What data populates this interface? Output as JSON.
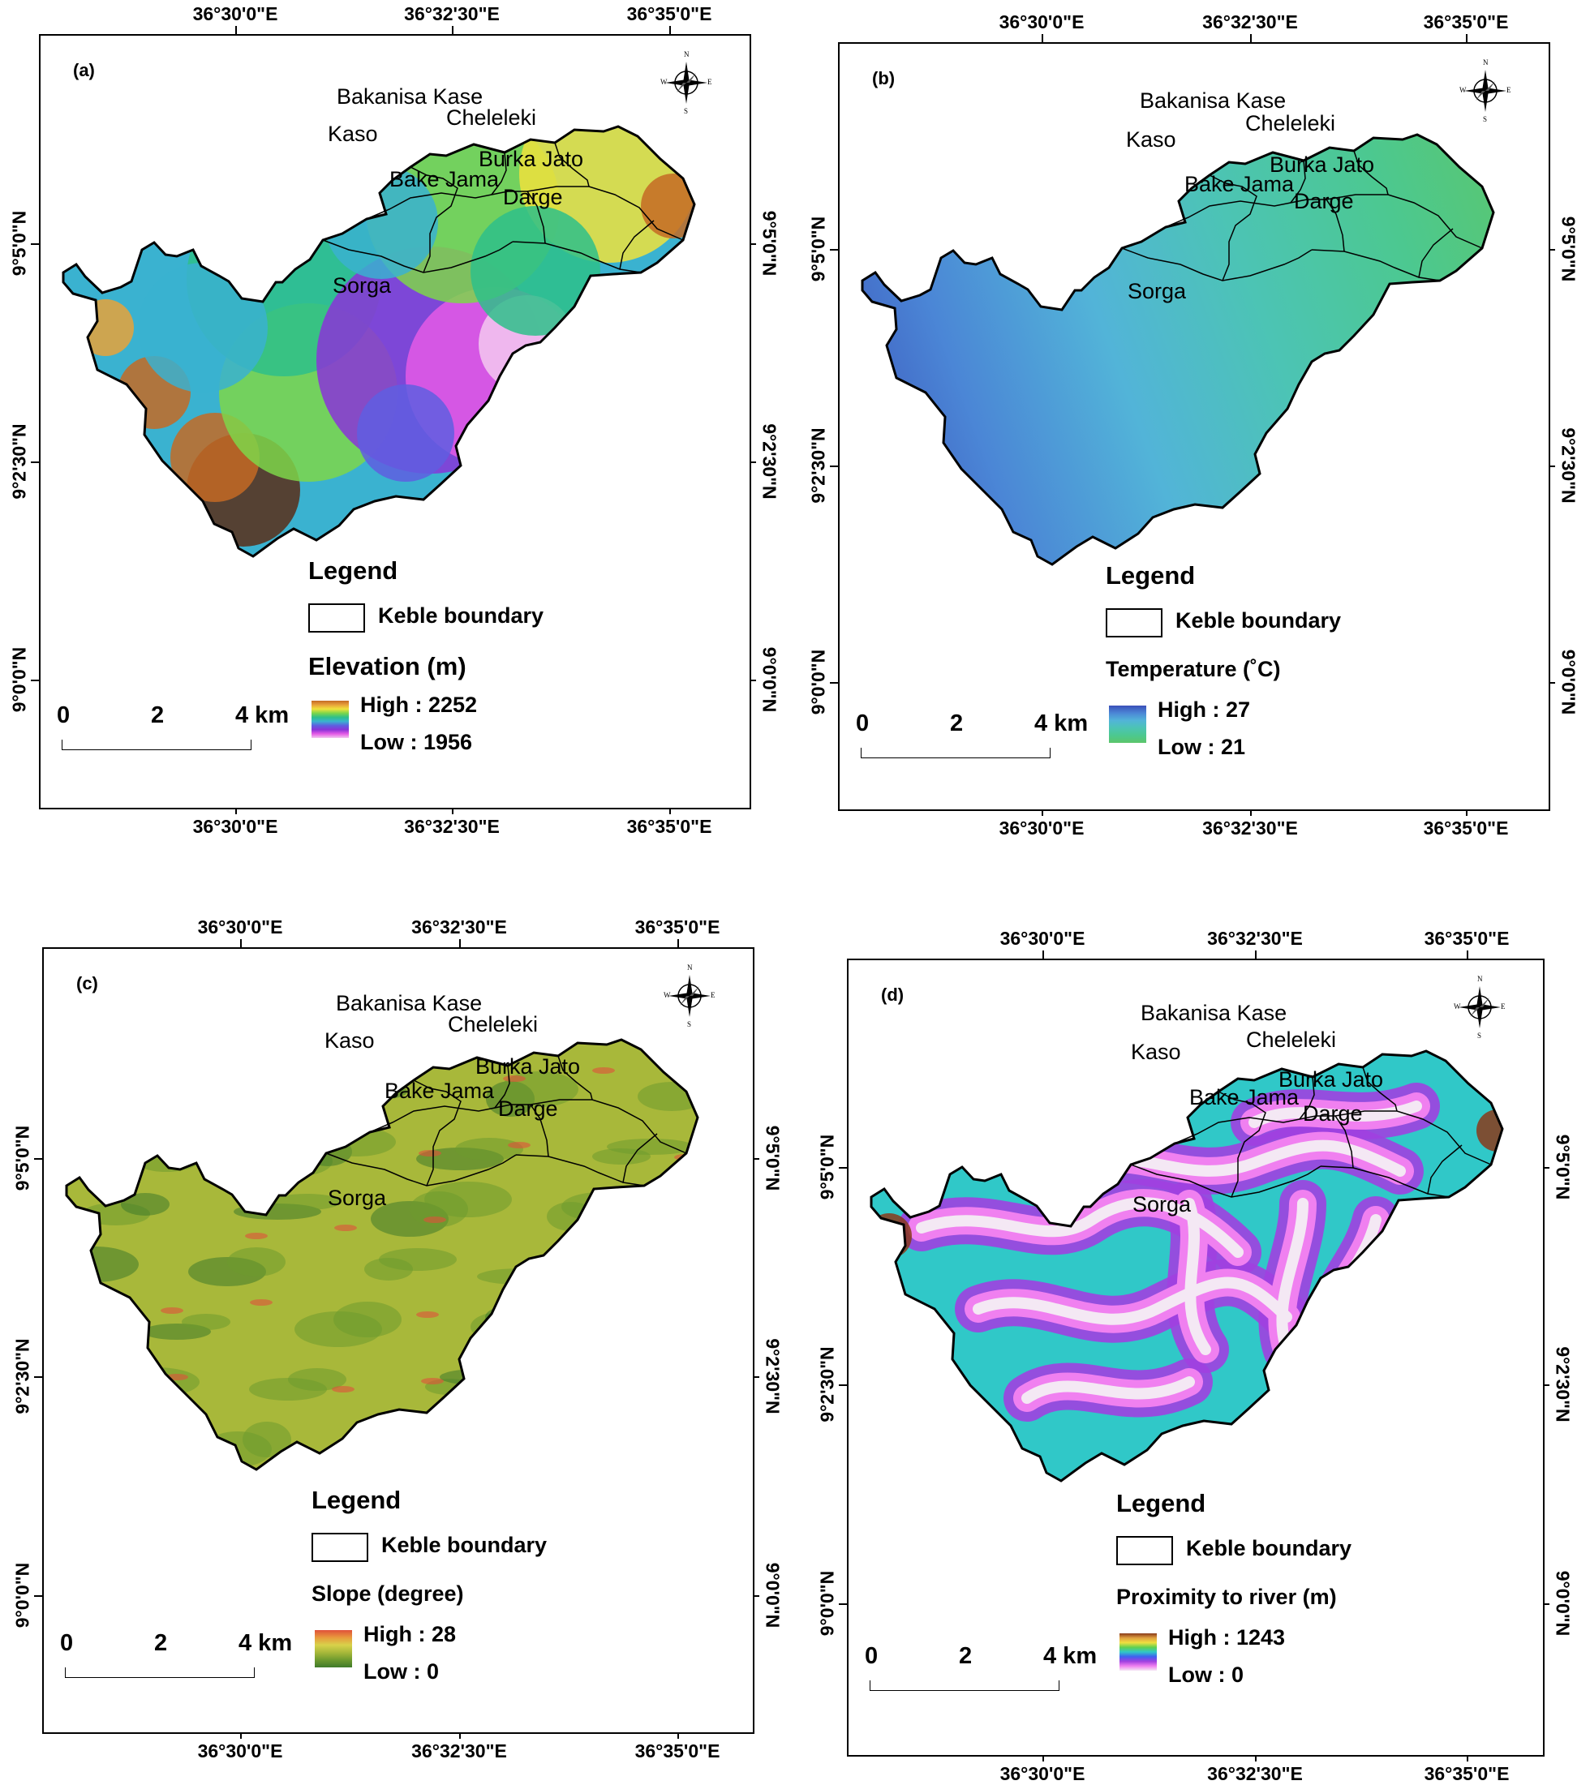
{
  "panels": [
    {
      "id": "a",
      "tag": "(a)",
      "top_labels": [
        "36°30'0\"E",
        "36°32'30\"E",
        "36°35'0\"E"
      ],
      "bottom_labels": [
        "36°30'0\"E",
        "36°32'30\"E",
        "36°35'0\"E"
      ],
      "left_labels": [
        "9°5'0\"N",
        "9°2'30\"N",
        "9°0'0\"N"
      ],
      "right_labels": [
        "9°5'0\"N",
        "9°2'30\"N",
        "9°0'0\"N"
      ],
      "kebeles": [
        "Bakanisa Kase",
        "Kaso",
        "Cheleleki",
        "Burka Jato",
        "Bake Jama",
        "Darge",
        "Sorga"
      ],
      "legend_title": "Legend",
      "boundary_label": "Keble boundary",
      "layer_title": "Elevation (m)",
      "high": "High : 2252",
      "low": "Low : 1956",
      "scale": [
        "0",
        "2",
        "4 km"
      ],
      "compass": [
        "N",
        "E",
        "S",
        "W"
      ],
      "colors": [
        "#5a2d17",
        "#c46a25",
        "#e8a23a",
        "#f0e23c",
        "#7ed64a",
        "#2ec08a",
        "#3ab2d0",
        "#5f5ee0",
        "#8a34d8",
        "#e45ae6",
        "#f3c8f0"
      ]
    },
    {
      "id": "b",
      "tag": "(b)",
      "top_labels": [
        "36°30'0\"E",
        "36°32'30\"E",
        "36°35'0\"E"
      ],
      "bottom_labels": [
        "36°30'0\"E",
        "36°32'30\"E",
        "36°35'0\"E"
      ],
      "left_labels": [
        "9°5'0\"N",
        "9°2'30\"N",
        "9°0'0\"N"
      ],
      "right_labels": [
        "9°5'0\"N",
        "9°2'30\"N",
        "9°0'0\"N"
      ],
      "kebeles": [
        "Bakanisa Kase",
        "Kaso",
        "Cheleleki",
        "Burka Jato",
        "Bake Jama",
        "Darge",
        "Sorga"
      ],
      "legend_title": "Legend",
      "boundary_label": "Keble boundary",
      "layer_title": "Temperature (˚C)",
      "high": "High : 27",
      "low": "Low : 21",
      "scale": [
        "0",
        "2",
        "4 km"
      ],
      "compass": [
        "N",
        "E",
        "S",
        "W"
      ],
      "colors": [
        "#3a4fb8",
        "#4b86d6",
        "#52b4d8",
        "#4cc4b4",
        "#4cc890",
        "#5cc66a"
      ]
    },
    {
      "id": "c",
      "tag": "(c)",
      "top_labels": [
        "36°30'0\"E",
        "36°32'30\"E",
        "36°35'0\"E"
      ],
      "bottom_labels": [
        "36°30'0\"E",
        "36°32'30\"E",
        "36°35'0\"E"
      ],
      "left_labels": [
        "9°5'0\"N",
        "9°2'30\"N",
        "9°0'0\"N"
      ],
      "right_labels": [
        "9°5'0\"N",
        "9°2'30\"N",
        "9°0'0\"N"
      ],
      "kebeles": [
        "Bakanisa Kase",
        "Kaso",
        "Cheleleki",
        "Burka Jato",
        "Bake Jama",
        "Darge",
        "Sorga"
      ],
      "legend_title": "Legend",
      "boundary_label": "Keble boundary",
      "layer_title": "Slope (degree)",
      "high": "High : 28",
      "low": "Low : 0",
      "scale": [
        "0",
        "2",
        "4 km"
      ],
      "compass": [
        "N",
        "E",
        "S",
        "W"
      ],
      "colors": [
        "#3f7a2a",
        "#6e9a2e",
        "#a8b83a",
        "#d8d24a",
        "#e89a3c",
        "#e0503a"
      ]
    },
    {
      "id": "d",
      "tag": "(d)",
      "top_labels": [
        "36°30'0\"E",
        "36°32'30\"E",
        "36°35'0\"E"
      ],
      "bottom_labels": [
        "36°30'0\"E",
        "36°32'30\"E",
        "36°35'0\"E"
      ],
      "left_labels": [
        "9°5'0\"N",
        "9°2'30\"N",
        "9°0'0\"N"
      ],
      "right_labels": [
        "9°5'0\"N",
        "9°2'30\"N",
        "9°0'0\"N"
      ],
      "kebeles": [
        "Bakanisa Kase",
        "Kaso",
        "Cheleleki",
        "Burka Jato",
        "Bake Jama",
        "Darge",
        "Sorga"
      ],
      "legend_title": "Legend",
      "boundary_label": "Keble boundary",
      "layer_title": "Proximity to river  (m)",
      "high": "High : 1243",
      "low": "Low : 0",
      "scale": [
        "0",
        "2",
        "4 km"
      ],
      "compass": [
        "N",
        "E",
        "S",
        "W"
      ],
      "colors": [
        "#8a3a1a",
        "#e0a040",
        "#f0e040",
        "#60d050",
        "#30c8c8",
        "#4060f0",
        "#a040e0",
        "#f080f0",
        "#f4e8f4"
      ]
    }
  ]
}
